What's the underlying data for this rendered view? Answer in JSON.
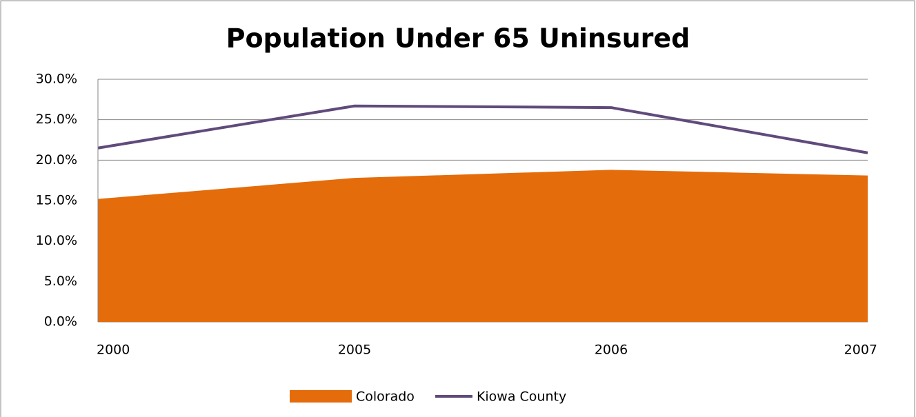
{
  "chart_data": {
    "type": "area",
    "title": "Population Under 65 Uninsured",
    "categories": [
      "2000",
      "2005",
      "2006",
      "2007"
    ],
    "series": [
      {
        "name": "Colorado",
        "type": "area",
        "color": "#e46c0a",
        "values": [
          15.2,
          17.8,
          18.8,
          18.1
        ]
      },
      {
        "name": "Kiowa County",
        "type": "line",
        "color": "#604a7b",
        "values": [
          21.5,
          26.7,
          26.5,
          20.9
        ]
      }
    ],
    "ylim": [
      0,
      30
    ],
    "yticks": [
      {
        "value": 0,
        "label": "0.0%"
      },
      {
        "value": 5,
        "label": "5.0%"
      },
      {
        "value": 10,
        "label": "10.0%"
      },
      {
        "value": 15,
        "label": "15.0%"
      },
      {
        "value": 20,
        "label": "20.0%"
      },
      {
        "value": 25,
        "label": "25.0%"
      },
      {
        "value": 30,
        "label": "30.0%"
      }
    ],
    "grid": true,
    "legend": "bottom"
  }
}
